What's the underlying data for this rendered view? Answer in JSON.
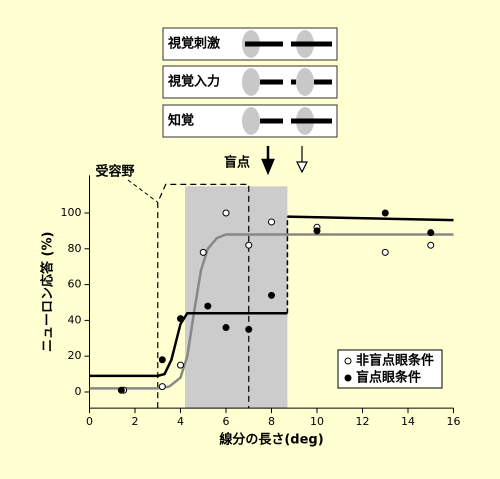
{
  "panels": [
    "視覚刺激",
    "視覚入力",
    "知覚"
  ],
  "blind_spot_label": "盲点",
  "chart_data": {
    "type": "scatter",
    "xlabel": "線分の長さ(deg)",
    "ylabel": "ニューロン応答 (%)",
    "xlim": [
      0,
      16
    ],
    "ylim": [
      -9,
      121
    ],
    "xticks": [
      0,
      2,
      4,
      6,
      8,
      10,
      12,
      14,
      16
    ],
    "yticks": [
      0,
      20,
      40,
      60,
      80,
      100
    ],
    "series": [
      {
        "name": "非盲点眼条件",
        "color": "#ffffff",
        "x": [
          1.5,
          3.2,
          4.0,
          5.0,
          6.0,
          7.0,
          8.0,
          10,
          13,
          15
        ],
        "values": [
          1,
          3,
          15,
          78,
          100,
          82,
          95,
          92,
          78,
          82
        ]
      },
      {
        "name": "盲点眼条件",
        "color": "#000000",
        "x": [
          1.4,
          3.2,
          4.0,
          5.2,
          6.0,
          7.0,
          8.0,
          10,
          13,
          15
        ],
        "values": [
          1,
          18,
          41,
          48,
          36,
          35,
          54,
          90,
          100,
          89
        ]
      }
    ],
    "fit_lines": [
      {
        "color": "#888888",
        "x": [
          0,
          3,
          3.5,
          4,
          4.3,
          4.6,
          4.9,
          5.2,
          5.6,
          6,
          7,
          16
        ],
        "values": [
          2,
          2,
          3,
          8,
          20,
          45,
          68,
          80,
          86,
          88,
          88,
          88
        ]
      },
      {
        "color": "#000000",
        "x": [
          0,
          3,
          3.3,
          3.6,
          4,
          4.3,
          8.7,
          8.7,
          8.7,
          16
        ],
        "values": [
          9,
          9,
          10,
          18,
          38,
          44,
          44,
          null,
          98,
          96
        ]
      },
      {
        "color": "#000000",
        "dashed": true,
        "x": [
          8.7,
          8.7
        ],
        "values": [
          44,
          98
        ]
      }
    ],
    "shaded_region": {
      "color": "#cccccc",
      "x": [
        4.2,
        8.7
      ]
    },
    "receptive_field": {
      "label": "受容野",
      "x": [
        3,
        7
      ],
      "top": 116
    },
    "legend": "lower right"
  }
}
